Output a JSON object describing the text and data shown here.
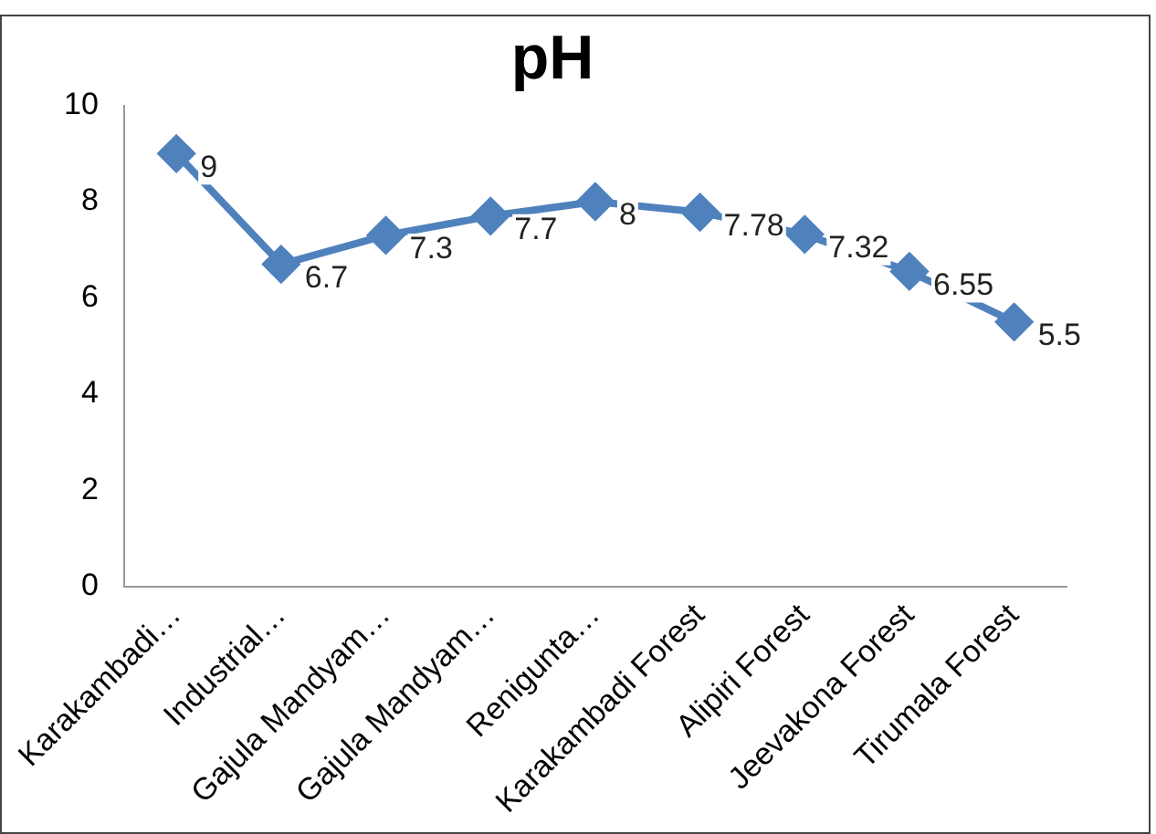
{
  "chart_data": {
    "type": "line",
    "title": "pH",
    "categories": [
      "Karakambadi…",
      "Industrial…",
      "Gajula Mandyam…",
      "Gajula Mandyam…",
      "Renigunta…",
      "Karakambadi Forest",
      "Alipiri Forest",
      "Jeevakona Forest",
      "Tirumala Forest"
    ],
    "series": [
      {
        "color": "#4f81bd",
        "values": [
          9,
          6.7,
          7.3,
          7.7,
          8,
          7.78,
          7.32,
          6.55,
          5.5
        ]
      }
    ],
    "ylim": [
      0,
      10
    ],
    "yticks": [
      0,
      2,
      4,
      6,
      8,
      10
    ],
    "grid": false,
    "legend": false,
    "marker": "diamond",
    "line_style": "solid",
    "data_labels": true
  }
}
